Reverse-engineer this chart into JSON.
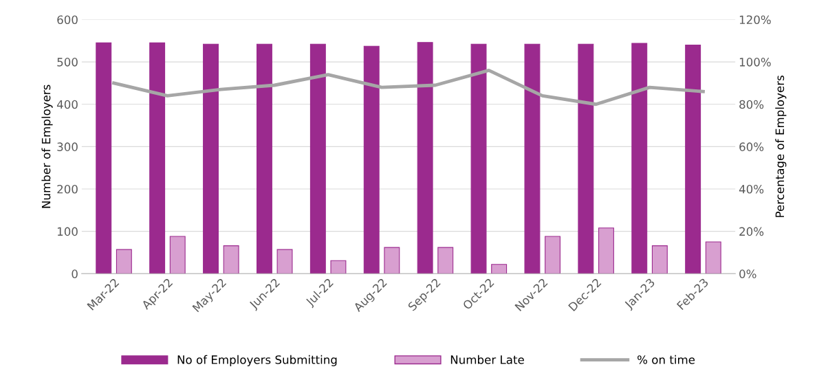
{
  "chart_data": {
    "type": "bar",
    "ylabel": "Number of Employers",
    "y2label": "Percentage of Employers",
    "categories": [
      "Mar-22",
      "Apr-22",
      "May-22",
      "Jun-22",
      "Jul-22",
      "Aug-22",
      "Sep-22",
      "Oct-22",
      "Nov-22",
      "Dec-22",
      "Jan-23",
      "Feb-23"
    ],
    "series": [
      {
        "name": "No of Employers Submitting",
        "color": "#9b2a8e",
        "values": [
          545,
          545,
          542,
          542,
          542,
          537,
          546,
          542,
          542,
          542,
          544,
          540
        ]
      },
      {
        "name": "Number Late",
        "color": "#d89fd0",
        "values": [
          57,
          88,
          66,
          57,
          31,
          62,
          62,
          22,
          88,
          108,
          66,
          75
        ]
      },
      {
        "name": "% on time",
        "type": "line",
        "axis": "y2",
        "color": "#a6a6a6",
        "values": [
          90,
          84,
          87,
          89,
          94,
          88,
          89,
          96,
          84,
          80,
          88,
          86
        ]
      }
    ],
    "ylim": [
      0,
      600
    ],
    "yticks": [
      0,
      100,
      200,
      300,
      400,
      500,
      600
    ],
    "y2lim": [
      0,
      120
    ],
    "y2ticks": [
      {
        "value": 0,
        "label": "0%"
      },
      {
        "value": 20,
        "label": "20%"
      },
      {
        "value": 40,
        "label": "40%"
      },
      {
        "value": 60,
        "label": "60%"
      },
      {
        "value": 80,
        "label": "80%"
      },
      {
        "value": 100,
        "label": "100%"
      },
      {
        "value": 120,
        "label": "120%"
      }
    ],
    "grid": "y",
    "legend": "bottom",
    "marker": "none",
    "line_style": "solid"
  }
}
